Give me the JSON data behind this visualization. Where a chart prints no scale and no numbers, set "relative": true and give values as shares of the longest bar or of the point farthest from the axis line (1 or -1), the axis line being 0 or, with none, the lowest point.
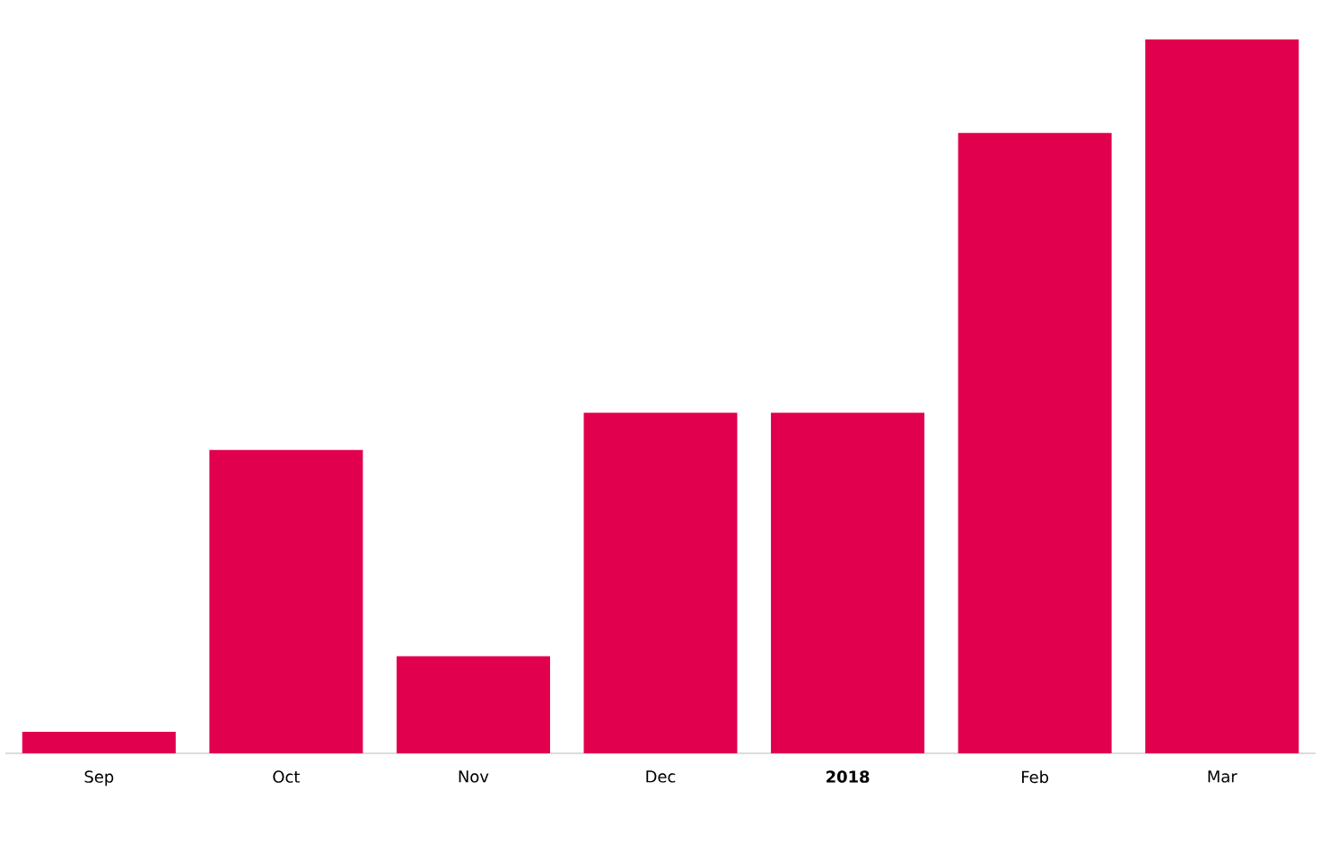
{
  "chart_data": {
    "type": "bar",
    "relative": true,
    "categories": [
      "Sep",
      "Oct",
      "Nov",
      "Dec",
      "**2018**",
      "Feb",
      "Mar"
    ],
    "values": [
      0.03,
      0.425,
      0.136,
      0.477,
      0.477,
      0.869,
      1
    ],
    "color": "#e0004d"
  }
}
